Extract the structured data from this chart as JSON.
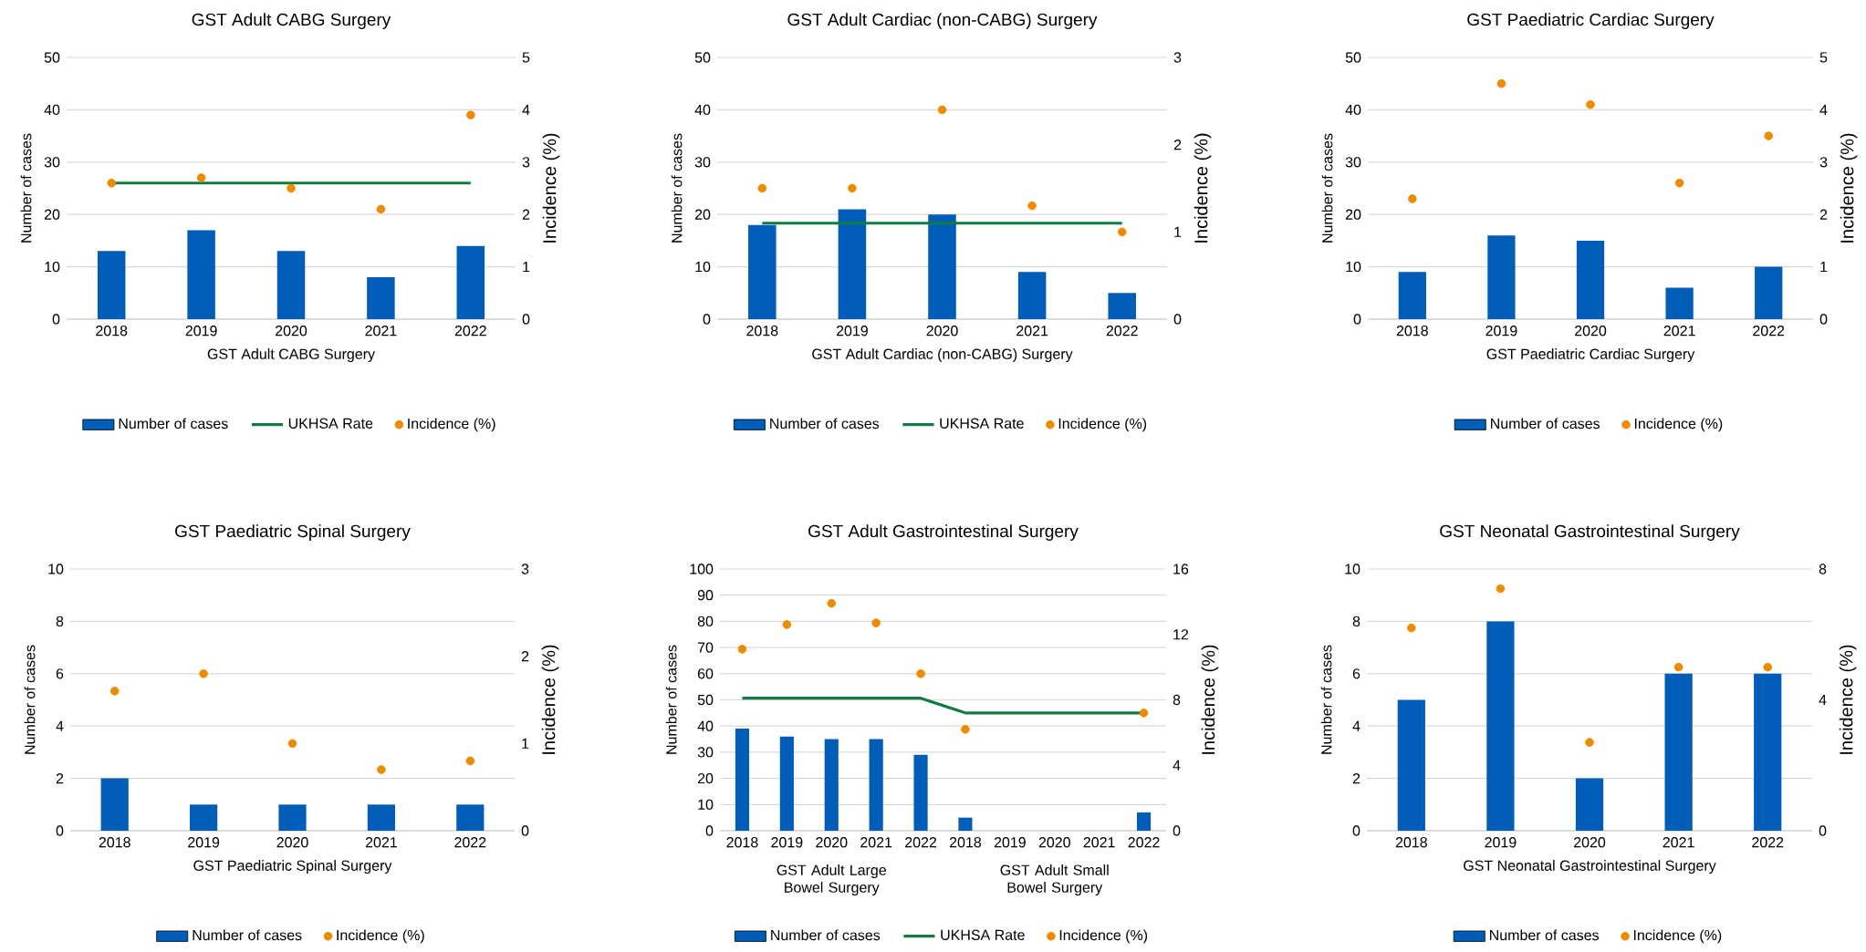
{
  "chart_data": [
    {
      "type": "bar",
      "title": "GST Adult CABG Surgery",
      "xlabel": "GST Adult CABG Surgery",
      "ylabel": "Number of cases",
      "y2label": "Incidence (%)",
      "categories": [
        "2018",
        "2019",
        "2020",
        "2021",
        "2022"
      ],
      "ylim": [
        0,
        50
      ],
      "yticks": [
        0,
        10,
        20,
        30,
        40,
        50
      ],
      "y2lim": [
        0,
        5
      ],
      "y2ticks": [
        0,
        1,
        2,
        3,
        4,
        5
      ],
      "grid": "y",
      "legend": "bottom",
      "series": [
        {
          "name": "Number of cases",
          "color": "#005eb8",
          "values": [
            13,
            17,
            13,
            8,
            14
          ]
        },
        {
          "name": "UKHSA Rate",
          "type": "line",
          "axis": "y2",
          "color": "#107c41",
          "values": [
            2.6,
            2.6,
            2.6,
            2.6,
            2.6
          ]
        },
        {
          "name": "Incidence (%)",
          "type": "scatter",
          "axis": "y2",
          "marker": "circle",
          "color": "#ed8b00",
          "values": [
            2.6,
            2.7,
            2.5,
            2.1,
            3.9
          ]
        }
      ]
    },
    {
      "type": "bar",
      "title": "GST Adult Cardiac (non-CABG) Surgery",
      "xlabel": "GST Adult Cardiac (non-CABG) Surgery",
      "ylabel": "Number of cases",
      "y2label": "Incidence (%)",
      "categories": [
        "2018",
        "2019",
        "2020",
        "2021",
        "2022"
      ],
      "ylim": [
        0,
        50
      ],
      "yticks": [
        0,
        10,
        20,
        30,
        40,
        50
      ],
      "y2lim": [
        0,
        3
      ],
      "y2ticks": [
        0,
        1,
        2,
        3
      ],
      "grid": "y",
      "legend": "bottom",
      "series": [
        {
          "name": "Number of cases",
          "color": "#005eb8",
          "values": [
            18,
            21,
            20,
            9,
            5
          ]
        },
        {
          "name": "UKHSA Rate",
          "type": "line",
          "axis": "y2",
          "color": "#107c41",
          "values": [
            1.1,
            1.1,
            1.1,
            1.1,
            1.1
          ]
        },
        {
          "name": "Incidence (%)",
          "type": "scatter",
          "axis": "y2",
          "marker": "circle",
          "color": "#ed8b00",
          "values": [
            1.5,
            1.5,
            2.4,
            1.3,
            1.0
          ]
        }
      ]
    },
    {
      "type": "bar",
      "title": "GST Paediatric Cardiac Surgery",
      "xlabel": "GST Paediatric Cardiac Surgery",
      "ylabel": "Number of cases",
      "y2label": "Incidence (%)",
      "categories": [
        "2018",
        "2019",
        "2020",
        "2021",
        "2022"
      ],
      "ylim": [
        0,
        50
      ],
      "yticks": [
        0,
        10,
        20,
        30,
        40,
        50
      ],
      "y2lim": [
        0,
        5
      ],
      "y2ticks": [
        0,
        1,
        2,
        3,
        4,
        5
      ],
      "grid": "y",
      "legend": "bottom",
      "series": [
        {
          "name": "Number of cases",
          "color": "#005eb8",
          "values": [
            9,
            16,
            15,
            6,
            10
          ]
        },
        {
          "name": "Incidence (%)",
          "type": "scatter",
          "axis": "y2",
          "marker": "circle",
          "color": "#ed8b00",
          "values": [
            2.3,
            4.5,
            4.1,
            2.6,
            3.5
          ]
        }
      ]
    },
    {
      "type": "bar",
      "title": "GST Paediatric Spinal Surgery",
      "xlabel": "GST Paediatric Spinal Surgery",
      "ylabel": "Number of cases",
      "y2label": "Incidence (%)",
      "categories": [
        "2018",
        "2019",
        "2020",
        "2021",
        "2022"
      ],
      "ylim": [
        0,
        10
      ],
      "yticks": [
        0,
        2,
        4,
        6,
        8,
        10
      ],
      "y2lim": [
        0,
        3
      ],
      "y2ticks": [
        0,
        1,
        2,
        3
      ],
      "grid": "y",
      "legend": "bottom",
      "series": [
        {
          "name": "Number of cases",
          "color": "#005eb8",
          "values": [
            2,
            1,
            1,
            1,
            1
          ]
        },
        {
          "name": "Incidence (%)",
          "type": "scatter",
          "axis": "y2",
          "marker": "circle",
          "color": "#ed8b00",
          "values": [
            1.6,
            1.8,
            1.0,
            0.7,
            0.8
          ]
        }
      ]
    },
    {
      "type": "bar",
      "title": "GST Adult Gastrointestinal Surgery",
      "ylabel": "Number of cases",
      "y2label": "Incidence (%)",
      "annotations": [
        "GST Adult Large Bowel Surgery",
        "GST Adult Small Bowel Surgery"
      ],
      "categories": [
        "2018",
        "2019",
        "2020",
        "2021",
        "2022",
        "2018",
        "2019",
        "2020",
        "2021",
        "2022"
      ],
      "ylim": [
        0,
        100
      ],
      "yticks": [
        0,
        10,
        20,
        30,
        40,
        50,
        60,
        70,
        80,
        90,
        100
      ],
      "y2lim": [
        0,
        16
      ],
      "y2ticks": [
        0,
        4,
        8,
        12,
        16
      ],
      "grid": "y",
      "legend": "bottom",
      "series": [
        {
          "name": "Number of cases",
          "color": "#005eb8",
          "values": [
            39,
            36,
            35,
            35,
            29,
            5,
            0,
            0,
            0,
            7
          ]
        },
        {
          "name": "UKHSA Rate",
          "type": "line",
          "axis": "y2",
          "color": "#107c41",
          "values": [
            8.1,
            8.1,
            8.1,
            8.1,
            8.1,
            7.2,
            7.2,
            7.2,
            7.2,
            7.2
          ]
        },
        {
          "name": "Incidence (%)",
          "type": "scatter",
          "axis": "y2",
          "marker": "circle",
          "color": "#ed8b00",
          "values": [
            11.1,
            12.6,
            13.9,
            12.7,
            9.6,
            6.2,
            null,
            null,
            null,
            7.2
          ]
        }
      ]
    },
    {
      "type": "bar",
      "title": "GST Neonatal Gastrointestinal Surgery",
      "xlabel": "GST Neonatal Gastrointestinal Surgery",
      "ylabel": "Number of cases",
      "y2label": "Incidence (%)",
      "categories": [
        "2018",
        "2019",
        "2020",
        "2021",
        "2022"
      ],
      "ylim": [
        0,
        10
      ],
      "yticks": [
        0,
        2,
        4,
        6,
        8,
        10
      ],
      "y2lim": [
        0,
        8
      ],
      "y2ticks": [
        0,
        4,
        8
      ],
      "grid": "y",
      "legend": "bottom",
      "series": [
        {
          "name": "Number of cases",
          "color": "#005eb8",
          "values": [
            5,
            8,
            2,
            6,
            6
          ]
        },
        {
          "name": "Incidence (%)",
          "type": "scatter",
          "axis": "y2",
          "marker": "circle",
          "color": "#ed8b00",
          "values": [
            6.2,
            7.4,
            2.7,
            5.0,
            5.0
          ]
        }
      ]
    }
  ]
}
